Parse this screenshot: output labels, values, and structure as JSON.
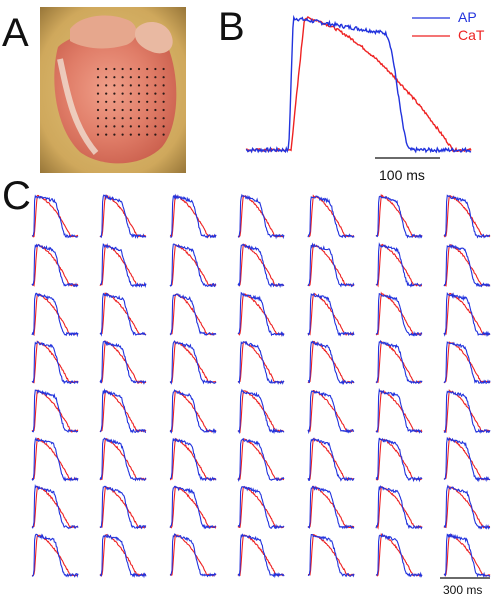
{
  "panels": {
    "a": "A",
    "b": "B",
    "c": "C"
  },
  "chart_data": [
    {
      "panel": "B",
      "type": "line",
      "xlabel": "",
      "ylabel": "",
      "legend": "top-right",
      "scale_bar": {
        "label": "100 ms",
        "duration_ms": 100
      },
      "series": [
        {
          "name": "AP",
          "color": "#2233dd",
          "upstroke_ms": 28,
          "duration_ms": 148
        },
        {
          "name": "CaT",
          "color": "#ee2222",
          "upstroke_ms": 38,
          "duration_ms": 185
        }
      ]
    },
    {
      "panel": "C",
      "type": "line",
      "grid_rows": 8,
      "grid_cols": 7,
      "scale_bar": {
        "label": "300 ms",
        "duration_ms": 300
      },
      "series": [
        {
          "name": "AP",
          "color": "#2233dd"
        },
        {
          "name": "CaT",
          "color": "#ee2222"
        }
      ]
    }
  ],
  "photo": {
    "dot_rows": 9,
    "dot_cols": 9
  },
  "colors": {
    "ap": "#2233dd",
    "cat": "#ee2222",
    "axis": "#111111"
  }
}
